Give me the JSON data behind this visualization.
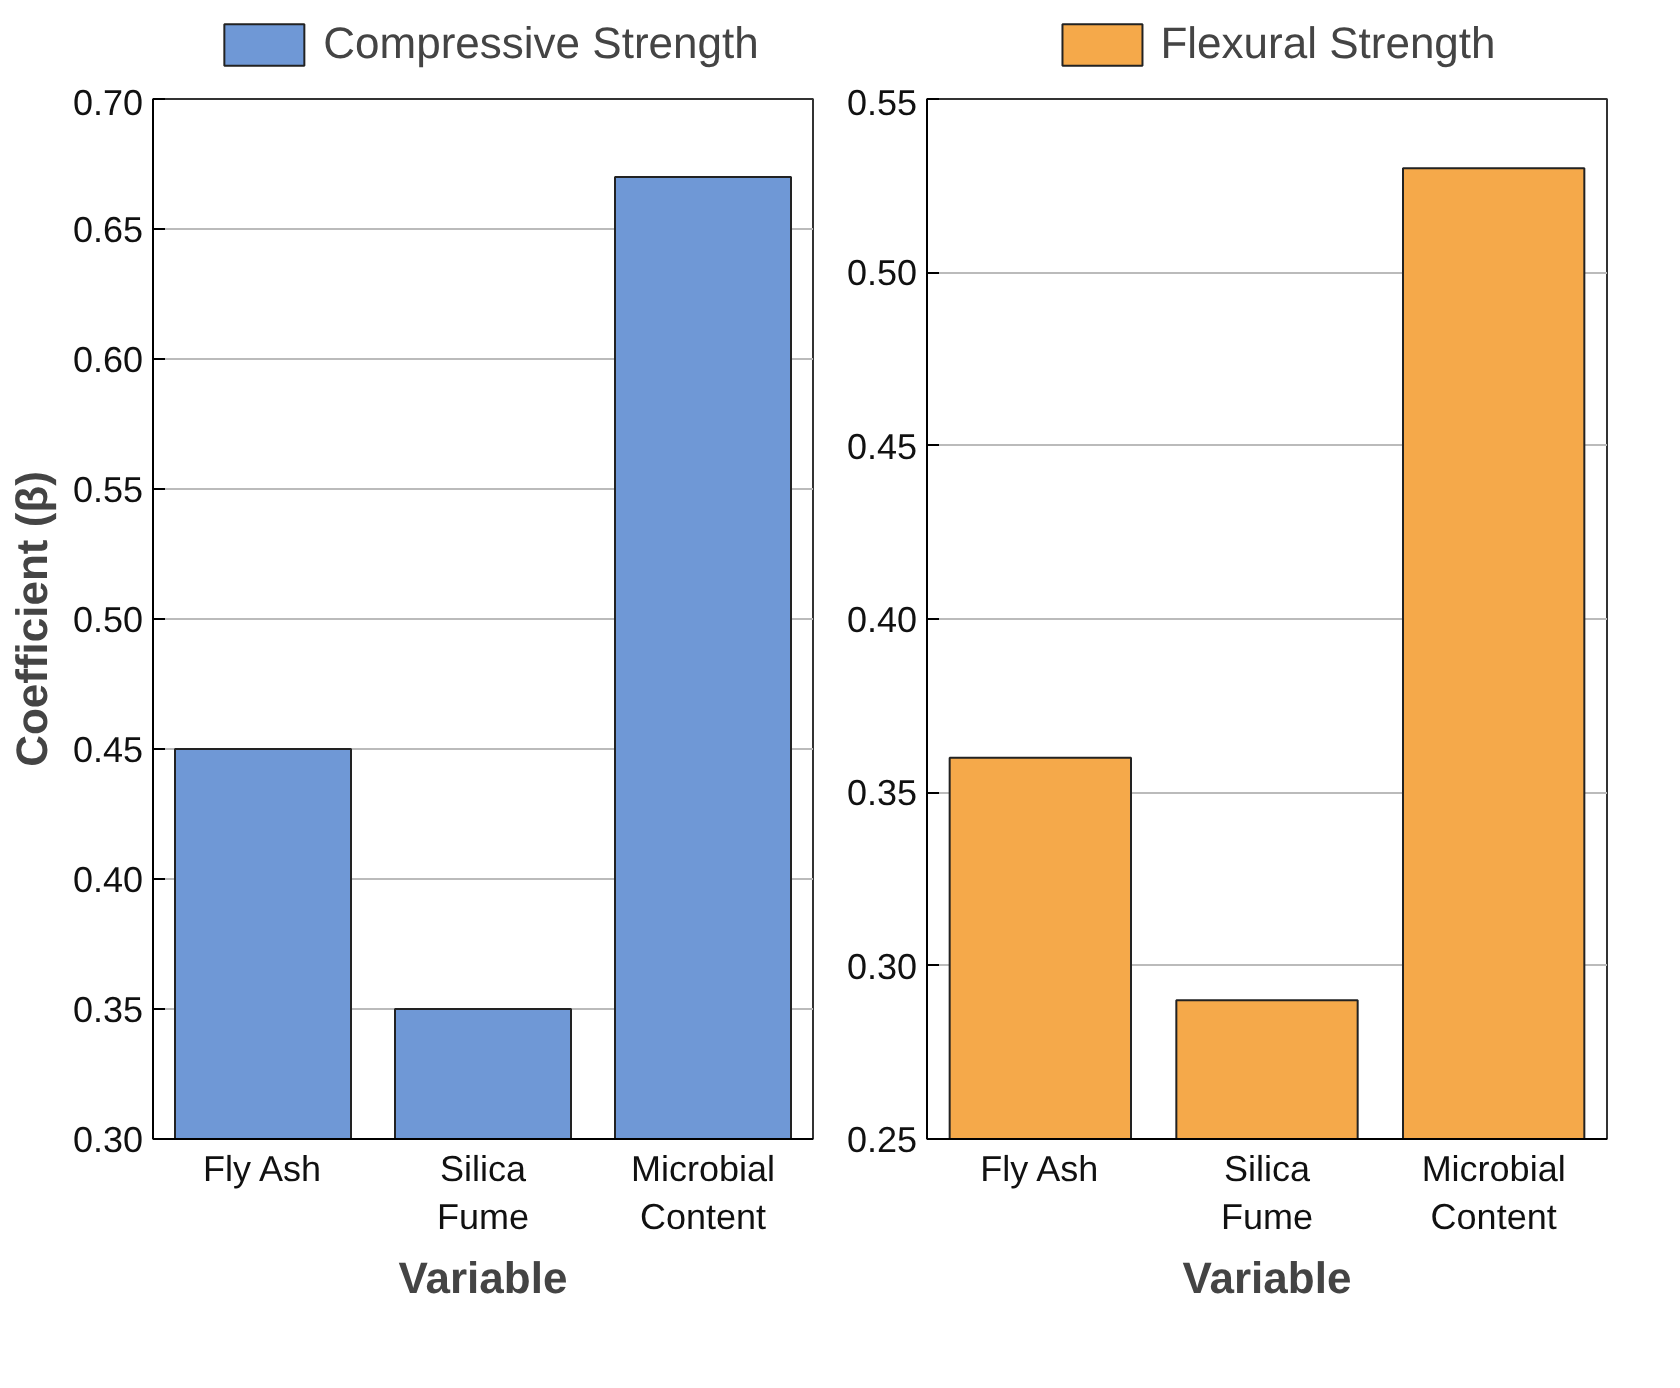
{
  "chart_data": [
    {
      "type": "bar",
      "categories": [
        "Fly Ash",
        "Silica\nFume",
        "Microbial\nContent"
      ],
      "series": [
        {
          "name": "Compressive Strength",
          "color": "#6f98d6",
          "values": [
            0.45,
            0.35,
            0.67
          ]
        }
      ],
      "ylim": [
        0.3,
        0.7
      ],
      "yticks": [
        {
          "value": 0.3,
          "label": "0.30"
        },
        {
          "value": 0.35,
          "label": "0.35"
        },
        {
          "value": 0.4,
          "label": "0.40"
        },
        {
          "value": 0.45,
          "label": "0.45"
        },
        {
          "value": 0.5,
          "label": "0.50"
        },
        {
          "value": 0.55,
          "label": "0.55"
        },
        {
          "value": 0.6,
          "label": "0.60"
        },
        {
          "value": 0.65,
          "label": "0.65"
        },
        {
          "value": 0.7,
          "label": "0.70"
        }
      ],
      "xlabel": "Variable",
      "ylabel": "Coefficient (β)",
      "grid": "y",
      "legend": "top"
    },
    {
      "type": "bar",
      "categories": [
        "Fly Ash",
        "Silica\nFume",
        "Microbial\nContent"
      ],
      "series": [
        {
          "name": "Flexural Strength",
          "color": "#f5a94a",
          "values": [
            0.36,
            0.29,
            0.53
          ]
        }
      ],
      "ylim": [
        0.25,
        0.55
      ],
      "yticks": [
        {
          "value": 0.25,
          "label": "0.25"
        },
        {
          "value": 0.3,
          "label": "0.30"
        },
        {
          "value": 0.35,
          "label": "0.35"
        },
        {
          "value": 0.4,
          "label": "0.40"
        },
        {
          "value": 0.45,
          "label": "0.45"
        },
        {
          "value": 0.5,
          "label": "0.50"
        },
        {
          "value": 0.55,
          "label": "0.55"
        }
      ],
      "xlabel": "Variable",
      "grid": "y",
      "legend": "top"
    }
  ]
}
